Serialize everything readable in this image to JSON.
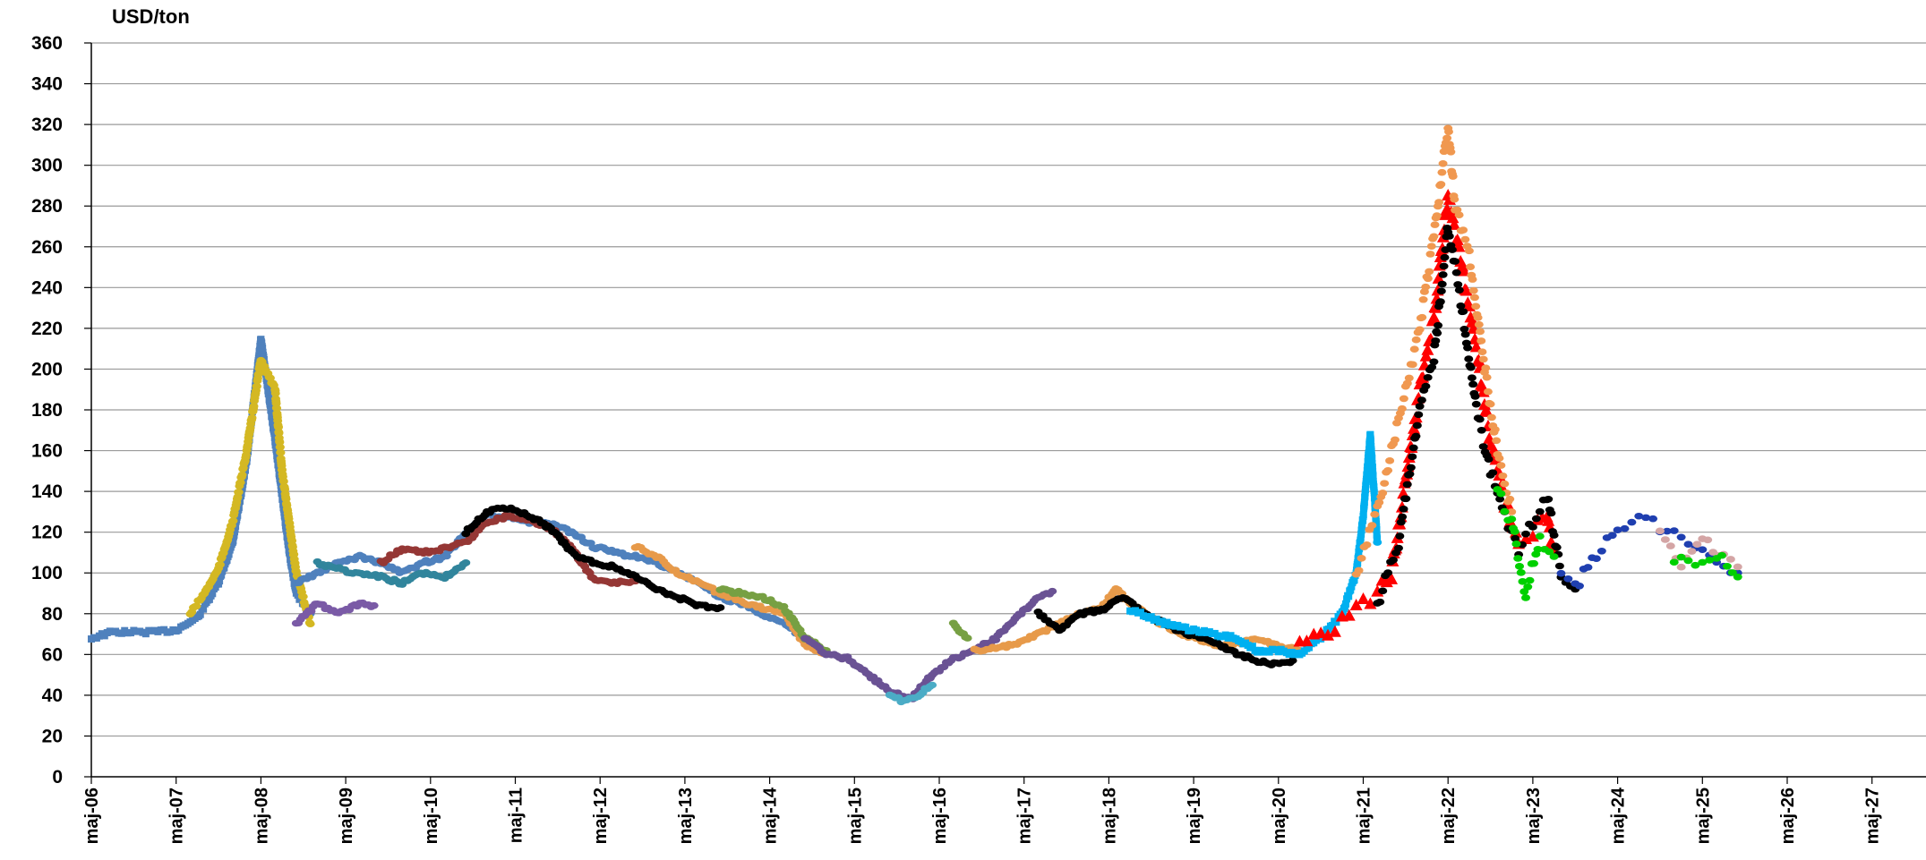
{
  "chart_data": {
    "type": "scatter",
    "title": "",
    "ylabel": "USD/ton",
    "ylim": [
      0,
      360
    ],
    "ytick_step": 20,
    "xlim": [
      "2006-05",
      "2027-07"
    ],
    "xticks": [
      "maj-06",
      "maj-07",
      "maj-08",
      "maj-09",
      "maj-10",
      "maj-11",
      "maj-12",
      "maj-13",
      "maj-14",
      "maj-15",
      "maj-16",
      "maj-17",
      "maj-18",
      "maj-19",
      "maj-20",
      "maj-21",
      "maj-22",
      "maj-23",
      "maj-24",
      "maj-25",
      "maj-26",
      "maj-27"
    ],
    "grid": true,
    "legend": "none",
    "series": [
      {
        "color": "#4f81bd",
        "marker": "square",
        "points": [
          [
            "2006-05",
            68
          ],
          [
            "2006-08",
            71
          ],
          [
            "2006-11",
            71
          ],
          [
            "2007-02",
            71
          ],
          [
            "2007-05",
            72
          ],
          [
            "2007-08",
            78
          ],
          [
            "2007-11",
            95
          ],
          [
            "2008-01",
            115
          ],
          [
            "2008-03",
            155
          ],
          [
            "2008-05",
            215
          ],
          [
            "2008-06",
            190
          ],
          [
            "2008-07",
            165
          ],
          [
            "2008-09",
            110
          ],
          [
            "2008-10",
            90
          ],
          [
            "2008-12",
            80
          ]
        ]
      },
      {
        "color": "#d4b823",
        "marker": "circle",
        "points": [
          [
            "2007-07",
            80
          ],
          [
            "2007-09",
            90
          ],
          [
            "2007-11",
            102
          ],
          [
            "2008-01",
            125
          ],
          [
            "2008-03",
            160
          ],
          [
            "2008-05",
            205
          ],
          [
            "2008-07",
            190
          ],
          [
            "2008-08",
            150
          ],
          [
            "2008-10",
            100
          ],
          [
            "2008-12",
            75
          ]
        ]
      },
      {
        "color": "#4f81bd",
        "marker": "circle",
        "points": [
          [
            "2008-10",
            95
          ],
          [
            "2009-01",
            100
          ],
          [
            "2009-04",
            105
          ],
          [
            "2009-07",
            108
          ],
          [
            "2009-10",
            105
          ],
          [
            "2010-01",
            100
          ],
          [
            "2010-04",
            105
          ],
          [
            "2010-07",
            108
          ],
          [
            "2010-10",
            120
          ],
          [
            "2011-01",
            128
          ],
          [
            "2011-04",
            127
          ],
          [
            "2011-07",
            125
          ],
          [
            "2011-10",
            124
          ],
          [
            "2012-01",
            120
          ],
          [
            "2012-04",
            113
          ],
          [
            "2012-07",
            110
          ],
          [
            "2012-10",
            108
          ],
          [
            "2013-01",
            105
          ],
          [
            "2013-04",
            100
          ],
          [
            "2013-07",
            95
          ],
          [
            "2013-10",
            88
          ],
          [
            "2014-01",
            85
          ],
          [
            "2014-04",
            80
          ],
          [
            "2014-07",
            75
          ],
          [
            "2014-10",
            68
          ]
        ]
      },
      {
        "color": "#7a5aa6",
        "marker": "circle",
        "points": [
          [
            "2008-10",
            75
          ],
          [
            "2009-01",
            85
          ],
          [
            "2009-04",
            80
          ],
          [
            "2009-07",
            85
          ],
          [
            "2009-09",
            84
          ]
        ]
      },
      {
        "color": "#31859c",
        "marker": "circle",
        "points": [
          [
            "2009-01",
            105
          ],
          [
            "2009-06",
            100
          ],
          [
            "2009-10",
            98
          ],
          [
            "2010-01",
            95
          ],
          [
            "2010-04",
            100
          ],
          [
            "2010-07",
            98
          ],
          [
            "2010-10",
            105
          ]
        ]
      },
      {
        "color": "#953735",
        "marker": "circle",
        "points": [
          [
            "2009-10",
            105
          ],
          [
            "2010-01",
            112
          ],
          [
            "2010-04",
            110
          ],
          [
            "2010-07",
            112
          ],
          [
            "2010-10",
            115
          ],
          [
            "2011-01",
            125
          ],
          [
            "2011-04",
            128
          ],
          [
            "2011-07",
            126
          ],
          [
            "2011-10",
            122
          ],
          [
            "2012-01",
            112
          ],
          [
            "2012-04",
            97
          ],
          [
            "2012-07",
            95
          ],
          [
            "2012-10",
            96
          ]
        ]
      },
      {
        "color": "#000000",
        "marker": "circle",
        "points": [
          [
            "2010-10",
            120
          ],
          [
            "2011-01",
            130
          ],
          [
            "2011-04",
            132
          ],
          [
            "2011-07",
            128
          ],
          [
            "2011-10",
            122
          ],
          [
            "2012-01",
            110
          ],
          [
            "2012-04",
            105
          ],
          [
            "2012-07",
            103
          ],
          [
            "2012-10",
            98
          ],
          [
            "2013-01",
            92
          ],
          [
            "2013-04",
            88
          ],
          [
            "2013-07",
            84
          ],
          [
            "2013-10",
            83
          ]
        ]
      },
      {
        "color": "#e79a4a",
        "marker": "circle",
        "points": [
          [
            "2012-10",
            113
          ],
          [
            "2013-01",
            108
          ],
          [
            "2013-04",
            100
          ],
          [
            "2013-07",
            95
          ],
          [
            "2013-10",
            90
          ],
          [
            "2014-01",
            86
          ],
          [
            "2014-04",
            83
          ],
          [
            "2014-07",
            80
          ],
          [
            "2014-10",
            65
          ],
          [
            "2015-01",
            60
          ]
        ]
      },
      {
        "color": "#77a043",
        "marker": "circle",
        "points": [
          [
            "2013-10",
            92
          ],
          [
            "2014-01",
            90
          ],
          [
            "2014-04",
            88
          ],
          [
            "2014-07",
            83
          ],
          [
            "2014-10",
            68
          ],
          [
            "2015-01",
            62
          ]
        ]
      },
      {
        "color": "#6a5294",
        "marker": "circle",
        "points": [
          [
            "2014-10",
            68
          ],
          [
            "2015-01",
            60
          ],
          [
            "2015-04",
            58
          ],
          [
            "2015-07",
            50
          ],
          [
            "2015-10",
            42
          ],
          [
            "2016-01",
            38
          ],
          [
            "2016-04",
            50
          ],
          [
            "2016-07",
            58
          ],
          [
            "2016-10",
            62
          ],
          [
            "2017-01",
            68
          ],
          [
            "2017-04",
            78
          ],
          [
            "2017-07",
            88
          ],
          [
            "2017-09",
            91
          ]
        ]
      },
      {
        "color": "#4bacc6",
        "marker": "circle",
        "points": [
          [
            "2015-10",
            40
          ],
          [
            "2015-12",
            37
          ],
          [
            "2016-02",
            40
          ],
          [
            "2016-04",
            45
          ]
        ]
      },
      {
        "color": "#77a043",
        "marker": "circle",
        "points": [
          [
            "2016-07",
            75
          ],
          [
            "2016-09",
            68
          ]
        ]
      },
      {
        "color": "#e79a4a",
        "marker": "circle",
        "points": [
          [
            "2016-10",
            62
          ],
          [
            "2017-01",
            63
          ],
          [
            "2017-04",
            65
          ],
          [
            "2017-07",
            70
          ],
          [
            "2017-10",
            75
          ],
          [
            "2018-01",
            80
          ],
          [
            "2018-04",
            83
          ],
          [
            "2018-06",
            92
          ],
          [
            "2018-08",
            85
          ],
          [
            "2018-11",
            78
          ],
          [
            "2019-02",
            72
          ],
          [
            "2019-05",
            68
          ],
          [
            "2019-08",
            65
          ],
          [
            "2019-11",
            65
          ],
          [
            "2020-02",
            68
          ],
          [
            "2020-05",
            64
          ],
          [
            "2020-08",
            62
          ]
        ]
      },
      {
        "color": "#000000",
        "marker": "circle",
        "points": [
          [
            "2017-07",
            80
          ],
          [
            "2017-10",
            72
          ],
          [
            "2018-01",
            80
          ],
          [
            "2018-04",
            82
          ],
          [
            "2018-07",
            88
          ],
          [
            "2018-10",
            80
          ],
          [
            "2019-01",
            75
          ],
          [
            "2019-04",
            70
          ],
          [
            "2019-07",
            68
          ],
          [
            "2019-10",
            62
          ],
          [
            "2020-01",
            58
          ],
          [
            "2020-04",
            55
          ],
          [
            "2020-07",
            57
          ]
        ]
      },
      {
        "color": "#00b0f0",
        "marker": "square",
        "points": [
          [
            "2018-08",
            82
          ],
          [
            "2018-11",
            78
          ],
          [
            "2019-02",
            74
          ],
          [
            "2019-05",
            72
          ],
          [
            "2019-08",
            70
          ],
          [
            "2019-11",
            68
          ],
          [
            "2020-02",
            62
          ],
          [
            "2020-05",
            62
          ],
          [
            "2020-08",
            60
          ],
          [
            "2020-11",
            68
          ],
          [
            "2021-02",
            80
          ],
          [
            "2021-04",
            100
          ],
          [
            "2021-05",
            128
          ],
          [
            "2021-06",
            168
          ],
          [
            "2021-07",
            115
          ]
        ]
      },
      {
        "color": "#ff0000",
        "marker": "triangle",
        "points": [
          [
            "2020-08",
            68
          ],
          [
            "2020-11",
            70
          ],
          [
            "2021-02",
            76
          ],
          [
            "2021-05",
            85
          ],
          [
            "2021-07",
            90
          ],
          [
            "2021-09",
            100
          ],
          [
            "2021-11",
            145
          ],
          [
            "2022-01",
            190
          ],
          [
            "2022-03",
            225
          ],
          [
            "2022-05",
            285
          ],
          [
            "2022-07",
            250
          ],
          [
            "2022-09",
            210
          ],
          [
            "2022-11",
            165
          ],
          [
            "2023-01",
            135
          ],
          [
            "2023-03",
            115
          ],
          [
            "2023-05",
            120
          ],
          [
            "2023-07",
            130
          ],
          [
            "2023-08",
            110
          ]
        ]
      },
      {
        "color": "#f09850",
        "marker": "circle",
        "points": [
          [
            "2021-04",
            100
          ],
          [
            "2021-07",
            130
          ],
          [
            "2021-10",
            175
          ],
          [
            "2022-01",
            220
          ],
          [
            "2022-03",
            265
          ],
          [
            "2022-05",
            320
          ],
          [
            "2022-06",
            280
          ],
          [
            "2022-08",
            255
          ],
          [
            "2022-10",
            205
          ],
          [
            "2022-12",
            160
          ],
          [
            "2023-02",
            130
          ]
        ]
      },
      {
        "color": "#000000",
        "marker": "circle",
        "points": [
          [
            "2021-07",
            85
          ],
          [
            "2021-10",
            115
          ],
          [
            "2022-01",
            180
          ],
          [
            "2022-03",
            205
          ],
          [
            "2022-05",
            270
          ],
          [
            "2022-07",
            230
          ],
          [
            "2022-09",
            180
          ],
          [
            "2022-11",
            150
          ],
          [
            "2023-01",
            128
          ],
          [
            "2023-03",
            112
          ],
          [
            "2023-05",
            125
          ],
          [
            "2023-07",
            138
          ],
          [
            "2023-09",
            100
          ],
          [
            "2023-11",
            92
          ]
        ]
      },
      {
        "color": "#00d000",
        "marker": "circle",
        "points": [
          [
            "2022-12",
            140
          ],
          [
            "2023-02",
            125
          ],
          [
            "2023-04",
            90
          ],
          [
            "2023-06",
            118
          ],
          [
            "2023-08",
            108
          ]
        ]
      },
      {
        "color": "#1f3fb0",
        "marker": "circle",
        "points": [
          [
            "2023-09",
            98
          ],
          [
            "2023-11",
            92
          ],
          [
            "2024-02",
            110
          ],
          [
            "2024-05",
            120
          ],
          [
            "2024-08",
            128
          ],
          [
            "2024-11",
            122
          ],
          [
            "2025-02",
            118
          ],
          [
            "2025-05",
            110
          ],
          [
            "2025-08",
            102
          ],
          [
            "2025-10",
            100
          ]
        ]
      },
      {
        "color": "#d4a5a5",
        "marker": "circle",
        "points": [
          [
            "2024-11",
            118
          ],
          [
            "2025-02",
            105
          ],
          [
            "2025-05",
            118
          ],
          [
            "2025-08",
            108
          ],
          [
            "2025-10",
            103
          ]
        ]
      },
      {
        "color": "#00d000",
        "marker": "circle",
        "points": [
          [
            "2025-01",
            108
          ],
          [
            "2025-04",
            104
          ],
          [
            "2025-07",
            110
          ],
          [
            "2025-10",
            98
          ]
        ]
      }
    ]
  }
}
